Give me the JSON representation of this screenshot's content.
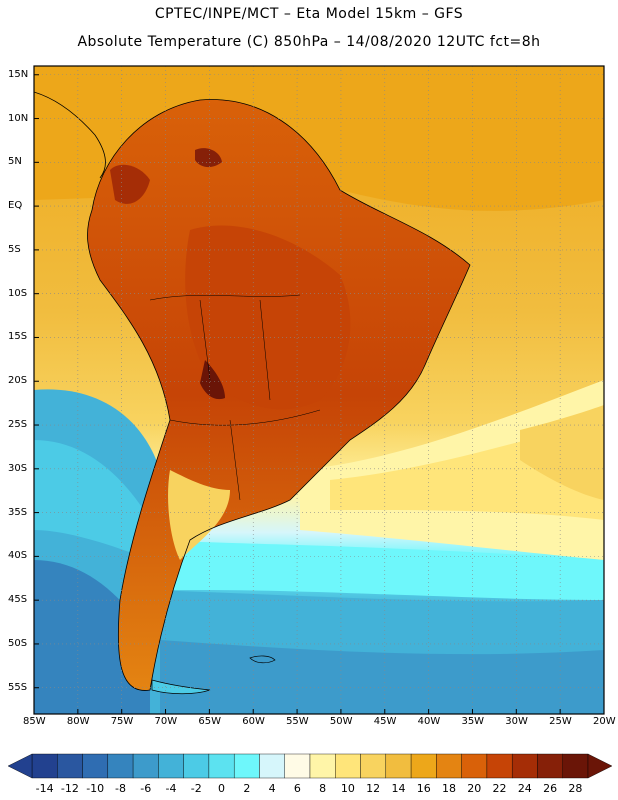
{
  "title_line1": "CPTEC/INPE/MCT –   Eta Model 15km – GFS",
  "title_line2": "Absolute Temperature (C) 850hPa – 14/08/2020 12UTC fct=8h",
  "map": {
    "lat_labels": [
      "15N",
      "10N",
      "5N",
      "EQ",
      "5S",
      "10S",
      "15S",
      "20S",
      "25S",
      "30S",
      "35S",
      "40S",
      "45S",
      "50S",
      "55S"
    ],
    "lon_labels": [
      "85W",
      "80W",
      "75W",
      "70W",
      "65W",
      "60W",
      "55W",
      "50W",
      "45W",
      "40W",
      "35W",
      "30W",
      "25W",
      "20W"
    ],
    "lon_range": [
      -85,
      -20
    ],
    "lat_range": [
      -58,
      16
    ],
    "grid": "dotted"
  },
  "colorbar": {
    "labels": [
      "-14",
      "-12",
      "-10",
      "-8",
      "-6",
      "-4",
      "-2",
      "0",
      "2",
      "4",
      "6",
      "8",
      "10",
      "12",
      "14",
      "16",
      "18",
      "20",
      "22",
      "24",
      "26",
      "28"
    ],
    "colors": [
      "#22418f",
      "#2a57a0",
      "#2f6db2",
      "#3584be",
      "#3d9bcb",
      "#43b2d8",
      "#4ccbe6",
      "#5ce2f0",
      "#6ef7fb",
      "#d6f6fb",
      "#fffbe6",
      "#fff5a8",
      "#ffe57a",
      "#f8d35f",
      "#f1bd3f",
      "#eda71a",
      "#e48412",
      "#d96109",
      "#c64406",
      "#a52d06",
      "#862008",
      "#6a1507"
    ]
  }
}
